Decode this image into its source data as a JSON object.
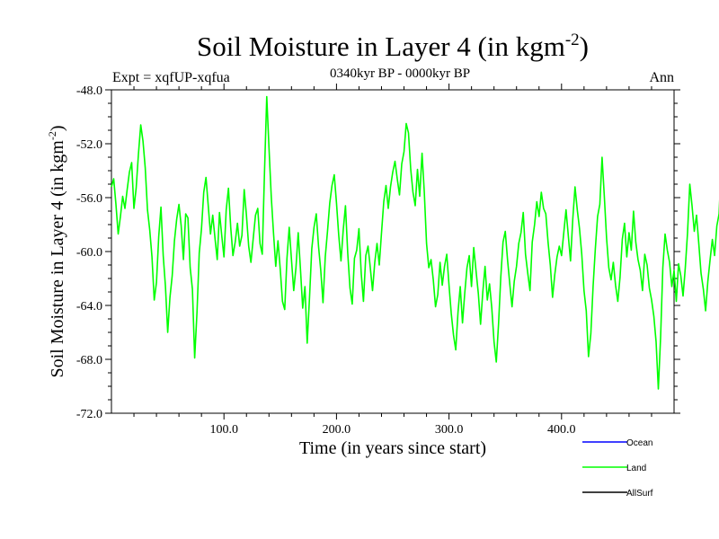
{
  "chart_data": {
    "type": "line",
    "title": "Soil Moisture in Layer 4 (in kgm",
    "title_sup": "-2",
    "title_end": ")",
    "subtitle_left": "Expt = xqfUP-xqfua",
    "subtitle_center": "0340kyr BP - 0000kyr BP",
    "subtitle_right": "Ann",
    "xlabel": "Time (in years since start)",
    "ylabel": "Soil Moisture in Layer 4 (in kgm",
    "ylabel_sup": "-2",
    "ylabel_end": ")",
    "xlim": [
      0,
      500
    ],
    "ylim": [
      -72,
      -48
    ],
    "x_ticks": [
      100,
      200,
      300,
      400
    ],
    "x_tick_labels": [
      "100.0",
      "200.0",
      "300.0",
      "400.0"
    ],
    "y_ticks": [
      -48,
      -52,
      -56,
      -60,
      -64,
      -68,
      -72
    ],
    "y_tick_labels": [
      "-48.0",
      "-52.0",
      "-56.0",
      "-60.0",
      "-64.0",
      "-68.0",
      "-72.0"
    ],
    "grid": false,
    "legend_position": "bottom-right",
    "series": [
      {
        "name": "Ocean",
        "color": "#0000ff",
        "x": [],
        "values": []
      },
      {
        "name": "Land",
        "color": "#00ff00",
        "x_start": 0,
        "x_step": 2,
        "values": [
          -55.2,
          -54.6,
          -56.5,
          -58.7,
          -57.4,
          -55.9,
          -56.8,
          -55.4,
          -54.1,
          -53.4,
          -56.8,
          -55.3,
          -52.8,
          -50.6,
          -51.8,
          -53.8,
          -56.9,
          -58.4,
          -60.4,
          -63.6,
          -62.3,
          -58.9,
          -56.7,
          -60.3,
          -62.6,
          -66.0,
          -63.4,
          -61.8,
          -59.2,
          -57.6,
          -56.5,
          -58.1,
          -60.6,
          -57.2,
          -57.5,
          -61.2,
          -62.8,
          -67.9,
          -64.5,
          -60.1,
          -58.3,
          -55.6,
          -54.5,
          -56.6,
          -58.7,
          -57.3,
          -59.0,
          -60.6,
          -57.1,
          -58.8,
          -60.4,
          -56.9,
          -55.3,
          -58.2,
          -60.3,
          -59.3,
          -57.9,
          -59.6,
          -58.8,
          -55.4,
          -57.3,
          -59.6,
          -60.8,
          -59.0,
          -57.3,
          -56.8,
          -59.4,
          -60.2,
          -54.1,
          -48.5,
          -52.3,
          -55.9,
          -58.6,
          -61.1,
          -59.2,
          -61.3,
          -63.7,
          -64.3,
          -60.5,
          -58.2,
          -60.6,
          -62.9,
          -61.2,
          -58.6,
          -61.3,
          -64.2,
          -62.6,
          -66.8,
          -63.4,
          -59.8,
          -58.2,
          -57.2,
          -59.6,
          -61.4,
          -63.8,
          -60.4,
          -58.5,
          -56.4,
          -55.1,
          -54.3,
          -56.4,
          -58.8,
          -60.7,
          -58.4,
          -56.6,
          -60.1,
          -62.7,
          -63.9,
          -60.5,
          -59.9,
          -58.3,
          -61.6,
          -63.7,
          -60.3,
          -59.6,
          -61.2,
          -62.9,
          -60.8,
          -59.4,
          -61.0,
          -58.6,
          -56.3,
          -55.1,
          -56.8,
          -55.2,
          -54.1,
          -53.3,
          -54.6,
          -55.8,
          -53.5,
          -52.6,
          -50.5,
          -51.2,
          -53.9,
          -55.6,
          -56.6,
          -53.9,
          -55.9,
          -52.7,
          -55.6,
          -59.4,
          -61.2,
          -60.6,
          -62.1,
          -64.1,
          -63.2,
          -60.8,
          -62.5,
          -61.1,
          -60.2,
          -62.5,
          -64.6,
          -66.2,
          -67.3,
          -64.5,
          -62.6,
          -65.3,
          -63.1,
          -61.2,
          -60.3,
          -62.6,
          -59.7,
          -61.4,
          -63.1,
          -65.4,
          -63.0,
          -61.1,
          -63.6,
          -62.4,
          -64.2,
          -66.7,
          -68.2,
          -65.4,
          -61.9,
          -59.3,
          -58.5,
          -60.6,
          -62.4,
          -64.1,
          -62.2,
          -61.1,
          -59.4,
          -58.6,
          -57.1,
          -60.2,
          -61.6,
          -62.9,
          -59.3,
          -58.0,
          -56.3,
          -57.4,
          -55.6,
          -56.8,
          -57.2,
          -59.3,
          -61.0,
          -63.4,
          -61.7,
          -60.4,
          -59.6,
          -60.3,
          -58.6,
          -56.9,
          -58.8,
          -60.7,
          -57.6,
          -55.2,
          -56.9,
          -58.3,
          -60.2,
          -62.9,
          -64.4,
          -67.8,
          -66.1,
          -62.6,
          -59.8,
          -57.4,
          -56.5,
          -53.0,
          -55.9,
          -59.0,
          -61.2,
          -62.1,
          -60.8,
          -62.5,
          -63.7,
          -61.9,
          -59.1,
          -57.9,
          -60.4,
          -58.6,
          -59.9,
          -57.0,
          -59.3,
          -60.6,
          -61.4,
          -62.9,
          -60.2,
          -61.0,
          -62.7,
          -63.6,
          -64.8,
          -66.7,
          -70.2,
          -66.4,
          -61.2,
          -58.7,
          -59.9,
          -60.8,
          -62.6,
          -61.4,
          -63.7,
          -60.9,
          -61.8,
          -63.3,
          -61.2,
          -58.6,
          -55.0,
          -56.6,
          -58.5,
          -57.3,
          -59.4,
          -61.6,
          -62.8,
          -64.4,
          -62.2,
          -60.6,
          -59.1,
          -60.3,
          -58.1,
          -57.2,
          -53.4,
          -57.3,
          -60.7
        ]
      },
      {
        "name": "AllSurf",
        "color": "#000000",
        "x": [],
        "values": []
      }
    ]
  }
}
